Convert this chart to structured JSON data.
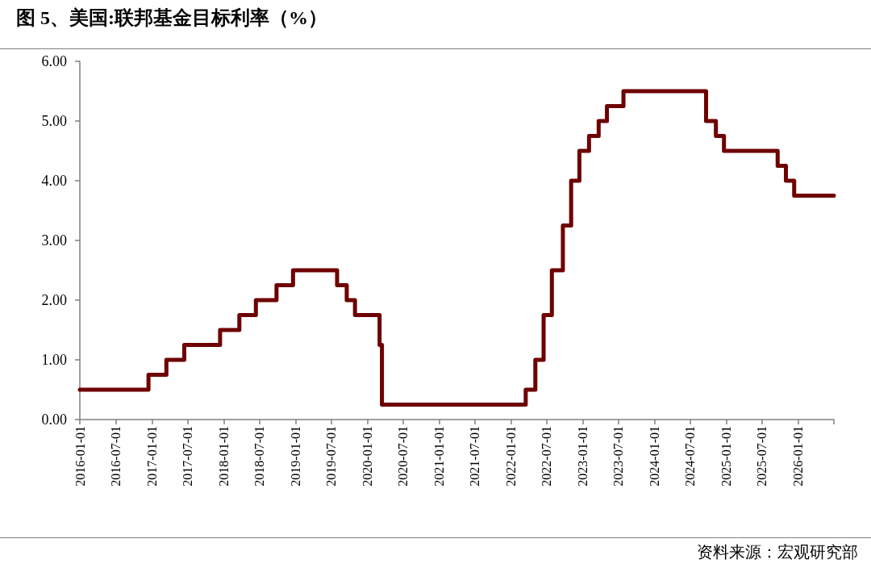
{
  "chart_data": {
    "type": "step",
    "title": "图 5、美国:联邦基金目标利率（%）",
    "annotations": [
      "资料来源：宏观研究部"
    ],
    "x": [
      "2016-01-01",
      "2016-12-15",
      "2017-03-16",
      "2017-06-15",
      "2017-12-14",
      "2018-03-22",
      "2018-06-14",
      "2018-09-27",
      "2018-12-20",
      "2019-08-01",
      "2019-09-19",
      "2019-10-31",
      "2020-03-04",
      "2020-03-16",
      "2022-03-17",
      "2022-05-05",
      "2022-06-16",
      "2022-07-28",
      "2022-09-22",
      "2022-11-03",
      "2022-12-15",
      "2023-02-02",
      "2023-03-23",
      "2023-05-04",
      "2023-07-27",
      "2024-09-19",
      "2024-11-08",
      "2024-12-19",
      "2025-09-18",
      "2025-10-30",
      "2025-12-11",
      "2026-07-01"
    ],
    "series": [
      {
        "color": "#6e0000",
        "values": [
          0.5,
          0.75,
          1.0,
          1.25,
          1.5,
          1.75,
          2.0,
          2.25,
          2.5,
          2.25,
          2.0,
          1.75,
          1.25,
          0.25,
          0.5,
          1.0,
          1.75,
          2.5,
          3.25,
          4.0,
          4.5,
          4.75,
          5.0,
          5.25,
          5.5,
          5.0,
          4.75,
          4.5,
          4.25,
          4.0,
          3.75,
          3.75
        ]
      }
    ],
    "xlim": [
      "2016-01-01",
      "2026-07-01"
    ],
    "xticks": [
      "2016-01-01",
      "2016-07-01",
      "2017-01-01",
      "2017-07-01",
      "2018-01-01",
      "2018-07-01",
      "2019-01-01",
      "2019-07-01",
      "2020-01-01",
      "2020-07-01",
      "2021-01-01",
      "2021-07-01",
      "2022-01-01",
      "2022-07-01",
      "2023-01-01",
      "2023-07-01",
      "2024-01-01",
      "2024-07-01",
      "2025-01-01",
      "2025-07-01",
      "2026-01-01",
      {
        "value": "2026-07-01",
        "label": null
      }
    ],
    "ylim": [
      0,
      6
    ],
    "yticks": [
      {
        "value": 0,
        "label": "0.00"
      },
      {
        "value": 1,
        "label": "1.00"
      },
      {
        "value": 2,
        "label": "2.00"
      },
      {
        "value": 3,
        "label": "3.00"
      },
      {
        "value": 4,
        "label": "4.00"
      },
      {
        "value": 5,
        "label": "5.00"
      },
      {
        "value": 6,
        "label": "6.00"
      }
    ],
    "grid": false,
    "marker": "none",
    "line_style": "solid"
  }
}
